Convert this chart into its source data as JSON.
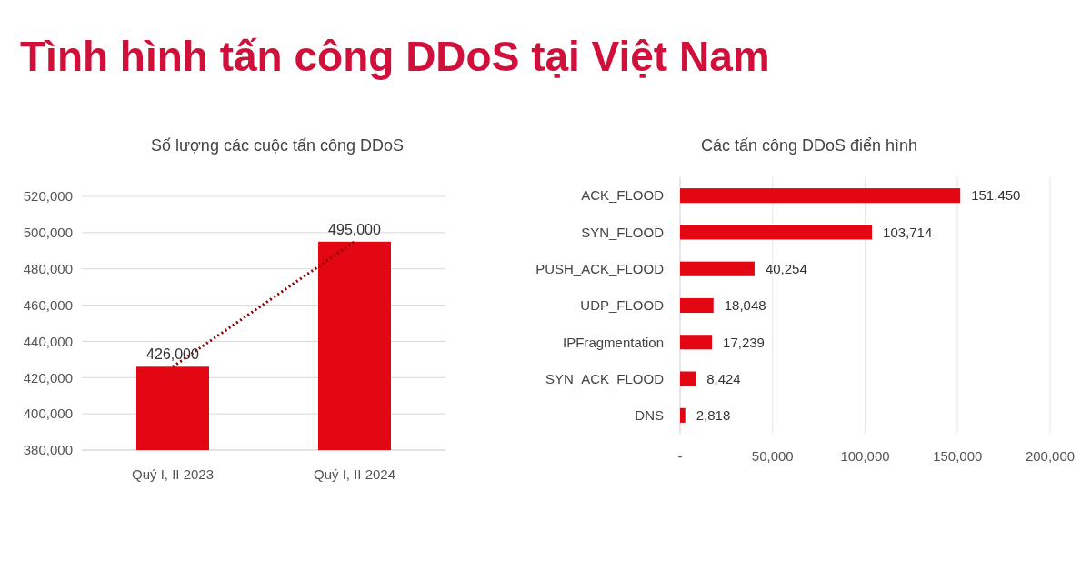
{
  "chart_data": [
    {
      "type": "other",
      "title": "Tình hình tấn công DDoS tại Việt Nam"
    },
    {
      "type": "bar",
      "title": "Số lượng các cuộc tấn công DDoS",
      "categories": [
        "Quý I, II 2023",
        "Quý I, II 2024"
      ],
      "series": [
        {
          "type": "bar",
          "color": "#e30613",
          "values": [
            426000,
            495000
          ],
          "value_labels": [
            "426,000",
            "495,000"
          ]
        },
        {
          "type": "line",
          "color": "#8b0000",
          "line_style": "dotted",
          "values": [
            426000,
            495000
          ]
        }
      ],
      "ylim": [
        380000,
        520000
      ],
      "yticks": [
        {
          "value": 380000,
          "label": "380,000"
        },
        {
          "value": 400000,
          "label": "400,000"
        },
        {
          "value": 420000,
          "label": "420,000"
        },
        {
          "value": 440000,
          "label": "440,000"
        },
        {
          "value": 460000,
          "label": "460,000"
        },
        {
          "value": 480000,
          "label": "480,000"
        },
        {
          "value": 500000,
          "label": "500,000"
        },
        {
          "value": 520000,
          "label": "520,000"
        }
      ],
      "grid": "y"
    },
    {
      "type": "bar",
      "orientation": "horizontal",
      "title": "Các tấn công DDoS điển hình",
      "categories": [
        "ACK_FLOOD",
        "SYN_FLOOD",
        "PUSH_ACK_FLOOD",
        "UDP_FLOOD",
        "IPFragmentation",
        "SYN_ACK_FLOOD",
        "DNS"
      ],
      "values": [
        151450,
        103714,
        40254,
        18048,
        17239,
        8424,
        2818
      ],
      "color": "#e30613",
      "value_labels": [
        "151,450",
        "103,714",
        "40,254",
        "18,048",
        "17,239",
        "8,424",
        "2,818"
      ],
      "xlim": [
        0,
        200000
      ],
      "xticks": [
        {
          "value": 0,
          "label": "-"
        },
        {
          "value": 50000,
          "label": "50,000"
        },
        {
          "value": 100000,
          "label": "100,000"
        },
        {
          "value": 150000,
          "label": "150,000"
        },
        {
          "value": 200000,
          "label": "200,000"
        }
      ],
      "grid": "x"
    }
  ]
}
